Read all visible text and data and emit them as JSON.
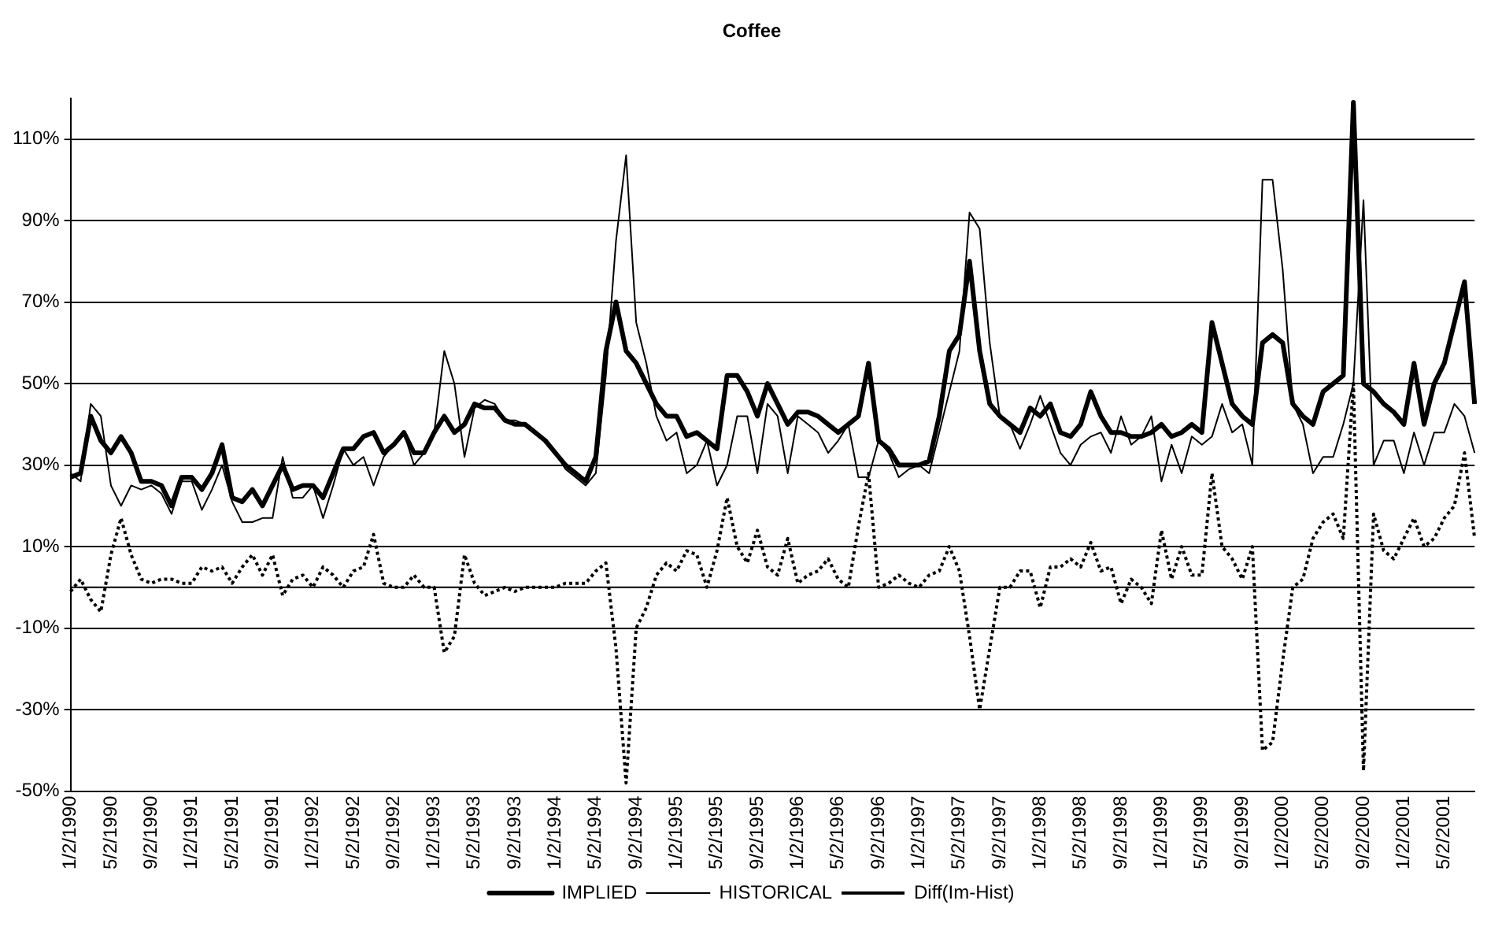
{
  "chart_data": {
    "type": "line",
    "title": "Coffee",
    "categories": [
      "1/2/1990",
      null,
      null,
      null,
      "5/2/1990",
      null,
      null,
      null,
      "9/2/1990",
      null,
      null,
      null,
      "1/2/1991",
      null,
      null,
      null,
      "5/2/1991",
      null,
      null,
      null,
      "9/2/1991",
      null,
      null,
      null,
      "1/2/1992",
      null,
      null,
      null,
      "5/2/1992",
      null,
      null,
      null,
      "9/2/1992",
      null,
      null,
      null,
      "1/2/1993",
      null,
      null,
      null,
      "5/2/1993",
      null,
      null,
      null,
      "9/2/1993",
      null,
      null,
      null,
      "1/2/1994",
      null,
      null,
      null,
      "5/2/1994",
      null,
      null,
      null,
      "9/2/1994",
      null,
      null,
      null,
      "1/2/1995",
      null,
      null,
      null,
      "5/2/1995",
      null,
      null,
      null,
      "9/2/1995",
      null,
      null,
      null,
      "1/2/1996",
      null,
      null,
      null,
      "5/2/1996",
      null,
      null,
      null,
      "9/2/1996",
      null,
      null,
      null,
      "1/2/1997",
      null,
      null,
      null,
      "5/2/1997",
      null,
      null,
      null,
      "9/2/1997",
      null,
      null,
      null,
      "1/2/1998",
      null,
      null,
      null,
      "5/2/1998",
      null,
      null,
      null,
      "9/2/1998",
      null,
      null,
      null,
      "1/2/1999",
      null,
      null,
      null,
      "5/2/1999",
      null,
      null,
      null,
      "9/2/1999",
      null,
      null,
      null,
      "1/2/2000",
      null,
      null,
      null,
      "5/2/2000",
      null,
      null,
      null,
      "9/2/2000",
      null,
      null,
      null,
      "1/2/2001",
      null,
      null,
      null,
      "5/2/2001",
      null,
      null,
      null
    ],
    "series": [
      {
        "name": "IMPLIED",
        "color": "#000000",
        "line_style": "solid",
        "values": [
          27,
          28,
          42,
          36,
          33,
          37,
          33,
          26,
          26,
          25,
          20,
          27,
          27,
          24,
          28,
          35,
          22,
          21,
          24,
          20,
          25,
          30,
          24,
          25,
          25,
          22,
          28,
          34,
          34,
          37,
          38,
          33,
          35,
          38,
          33,
          33,
          38,
          42,
          38,
          40,
          45,
          44,
          44,
          41,
          40,
          40,
          38,
          36,
          33,
          30,
          28,
          26,
          32,
          58,
          70,
          58,
          55,
          50,
          45,
          42,
          42,
          37,
          38,
          36,
          34,
          52,
          52,
          48,
          42,
          50,
          45,
          40,
          43,
          43,
          42,
          40,
          38,
          40,
          42,
          55,
          36,
          34,
          30,
          30,
          30,
          31,
          42,
          58,
          62,
          80,
          58,
          45,
          42,
          40,
          38,
          44,
          42,
          45,
          38,
          37,
          40,
          48,
          42,
          38,
          38,
          37,
          37,
          38,
          40,
          37,
          38,
          40,
          38,
          65,
          55,
          45,
          42,
          40,
          60,
          62,
          60,
          45,
          42,
          40,
          48,
          50,
          52,
          119,
          50,
          48,
          45,
          43,
          40,
          55,
          40,
          50,
          55,
          65,
          75,
          45
        ]
      },
      {
        "name": "HISTORICAL",
        "color": "#000000",
        "line_style": "solid",
        "values": [
          28,
          26,
          45,
          42,
          25,
          20,
          25,
          24,
          25,
          23,
          18,
          26,
          26,
          19,
          24,
          30,
          21,
          16,
          16,
          17,
          17,
          32,
          22,
          22,
          25,
          17,
          25,
          34,
          30,
          32,
          25,
          32,
          35,
          38,
          30,
          33,
          38,
          58,
          50,
          32,
          44,
          46,
          45,
          41,
          41,
          40,
          38,
          36,
          33,
          29,
          27,
          25,
          28,
          52,
          85,
          106,
          65,
          55,
          42,
          36,
          38,
          28,
          30,
          36,
          25,
          30,
          42,
          42,
          28,
          45,
          42,
          28,
          42,
          40,
          38,
          33,
          36,
          40,
          27,
          27,
          36,
          33,
          27,
          29,
          30,
          28,
          38,
          48,
          58,
          92,
          88,
          60,
          42,
          40,
          34,
          40,
          47,
          40,
          33,
          30,
          35,
          37,
          38,
          33,
          42,
          35,
          37,
          42,
          26,
          35,
          28,
          37,
          35,
          37,
          45,
          38,
          40,
          30,
          100,
          100,
          78,
          45,
          40,
          28,
          32,
          32,
          40,
          50,
          95,
          30,
          36,
          36,
          28,
          38,
          30,
          38,
          38,
          45,
          42,
          33
        ]
      },
      {
        "name": "Diff(Im-Hist)",
        "color": "#000000",
        "line_style": "dotted",
        "values": [
          -1,
          2,
          -3,
          -6,
          8,
          17,
          8,
          2,
          1,
          2,
          2,
          1,
          1,
          5,
          4,
          5,
          1,
          5,
          8,
          3,
          8,
          -2,
          2,
          3,
          0,
          5,
          3,
          0,
          4,
          5,
          13,
          1,
          0,
          0,
          3,
          0,
          0,
          -16,
          -12,
          8,
          1,
          -2,
          -1,
          0,
          -1,
          0,
          0,
          0,
          0,
          1,
          1,
          1,
          4,
          6,
          -15,
          -48,
          -10,
          -5,
          3,
          6,
          4,
          9,
          8,
          0,
          9,
          22,
          10,
          6,
          14,
          5,
          3,
          12,
          1,
          3,
          4,
          7,
          2,
          0,
          15,
          28,
          0,
          1,
          3,
          1,
          0,
          3,
          4,
          10,
          4,
          -12,
          -30,
          -15,
          0,
          0,
          4,
          4,
          -5,
          5,
          5,
          7,
          5,
          11,
          4,
          5,
          -4,
          2,
          0,
          -4,
          14,
          2,
          10,
          3,
          3,
          28,
          10,
          7,
          2,
          10,
          -40,
          -38,
          -18,
          0,
          2,
          12,
          16,
          18,
          12,
          50,
          -45,
          18,
          9,
          7,
          12,
          17,
          10,
          12,
          17,
          20,
          33,
          12
        ]
      }
    ],
    "ylim": [
      -50,
      120
    ],
    "yticks": [
      {
        "value": -50,
        "label": "-50%"
      },
      {
        "value": -30,
        "label": "-30%"
      },
      {
        "value": -10,
        "label": "-10%"
      },
      {
        "value": 10,
        "label": "10%"
      },
      {
        "value": 30,
        "label": "30%"
      },
      {
        "value": 50,
        "label": "50%"
      },
      {
        "value": 70,
        "label": "70%"
      },
      {
        "value": 90,
        "label": "90%"
      },
      {
        "value": 110,
        "label": "110%"
      }
    ],
    "ref_lines": [
      {
        "axis": "y",
        "value": 0,
        "label": null,
        "color": "#000000"
      }
    ],
    "grid": "y",
    "legend": "bottom",
    "marker": "none"
  }
}
